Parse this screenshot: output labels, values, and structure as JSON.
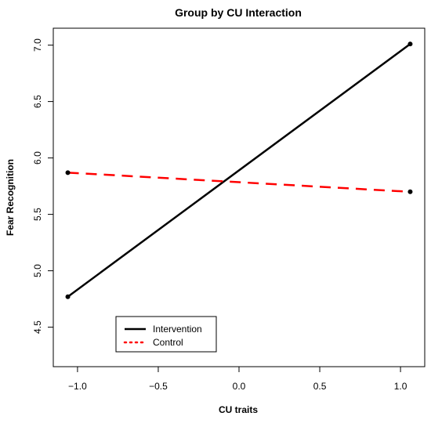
{
  "chart_data": {
    "type": "line",
    "title": "Group by CU Interaction",
    "xlabel": "CU traits",
    "ylabel": "Fear Recognition",
    "xlim": [
      -1.15,
      1.15
    ],
    "ylim": [
      4.15,
      7.15
    ],
    "x_ticks": [
      -1.0,
      -0.5,
      0.0,
      0.5,
      1.0
    ],
    "x_tick_labels": [
      "−1.0",
      "−0.5",
      "0.0",
      "0.5",
      "1.0"
    ],
    "y_ticks": [
      4.5,
      5.0,
      5.5,
      6.0,
      6.5,
      7.0
    ],
    "y_tick_labels": [
      "4.5",
      "5.0",
      "5.5",
      "6.0",
      "6.5",
      "7.0"
    ],
    "grid": false,
    "legend_position": "bottom-left",
    "series": [
      {
        "name": "Intervention",
        "color": "#000000",
        "line_style": "solid",
        "points": [
          {
            "x": -1.06,
            "y": 4.77
          },
          {
            "x": 1.06,
            "y": 7.01
          }
        ]
      },
      {
        "name": "Control",
        "color": "#ff0000",
        "line_style": "dashed",
        "legend_style": "dotted",
        "points": [
          {
            "x": -1.06,
            "y": 5.87
          },
          {
            "x": 1.06,
            "y": 5.7
          }
        ]
      }
    ]
  }
}
